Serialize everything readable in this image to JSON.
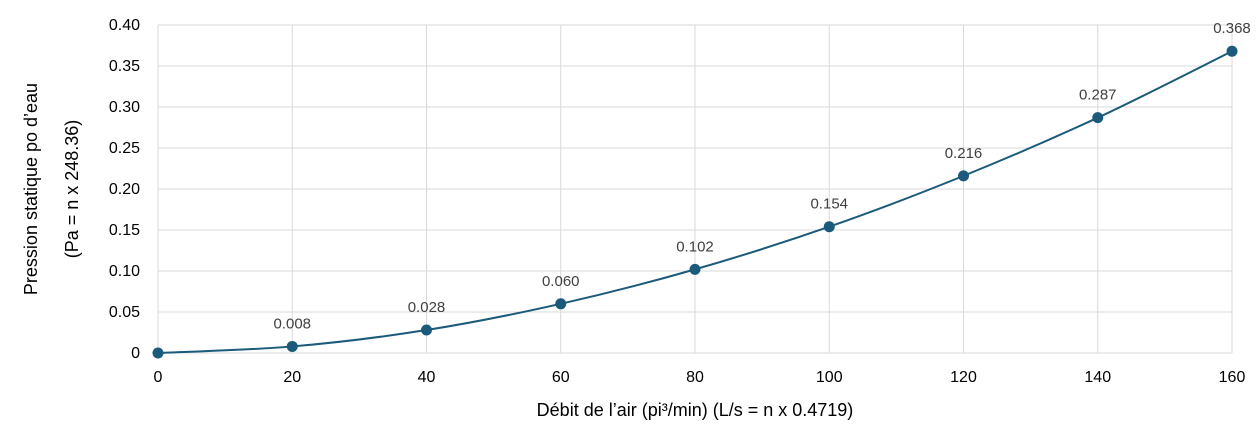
{
  "chart_data": {
    "type": "line",
    "title": "",
    "xlabel": "Débit de l’air (pi³/min) (L/s = n x 0.4719)",
    "ylabel_line1": "Pression statique po d’eau",
    "ylabel_line2": "(Pa = n x 248.36)",
    "xlim": [
      0,
      160
    ],
    "ylim": [
      0,
      0.4
    ],
    "x_ticks": [
      0,
      20,
      40,
      60,
      80,
      100,
      120,
      140,
      160
    ],
    "x_tick_labels": [
      "0",
      "20",
      "40",
      "60",
      "80",
      "100",
      "120",
      "140",
      "160"
    ],
    "y_ticks": [
      0,
      0.05,
      0.1,
      0.15,
      0.2,
      0.25,
      0.3,
      0.35,
      0.4
    ],
    "y_tick_labels": [
      "0",
      "0.05",
      "0.10",
      "0.15",
      "0.20",
      "0.25",
      "0.30",
      "0.35",
      "0.40"
    ],
    "grid": true,
    "series": [
      {
        "x": [
          0,
          20,
          40,
          60,
          80,
          100,
          120,
          140,
          160
        ],
        "y": [
          0,
          0.008,
          0.028,
          0.06,
          0.102,
          0.154,
          0.216,
          0.287,
          0.368
        ],
        "data_labels": [
          "",
          "0.008",
          "0.028",
          "0.060",
          "0.102",
          "0.154",
          "0.216",
          "0.287",
          "0.368"
        ]
      }
    ],
    "colors": {
      "line": "#1b5a7a",
      "marker": "#1b5a7a",
      "grid": "#d9d9d9",
      "data_label": "#404040"
    }
  }
}
